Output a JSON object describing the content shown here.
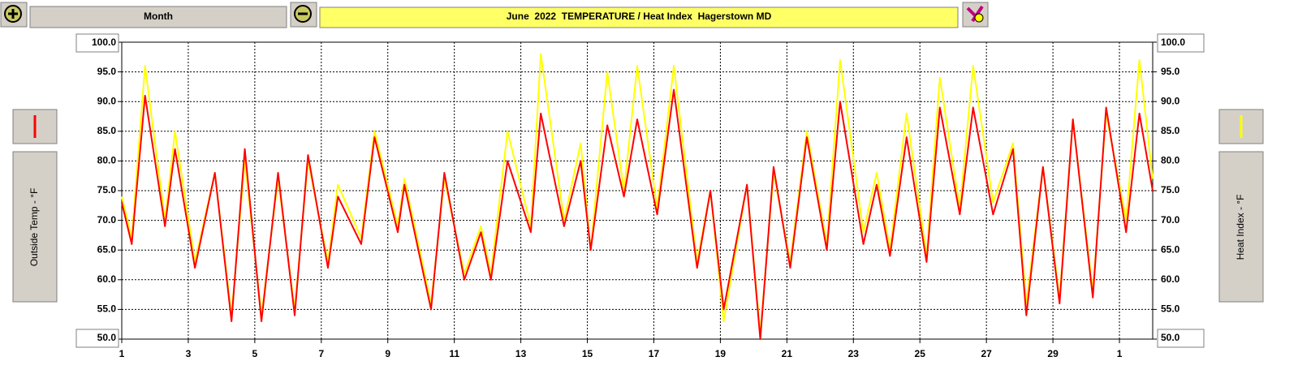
{
  "header": {
    "range_button": "Month"
  },
  "chart_data": {
    "type": "line",
    "title": "June  2022  TEMPERATURE / Heat Index  Hagerstown MD",
    "x": [
      1,
      1.3,
      1.7,
      2.3,
      2.6,
      3.2,
      3.8,
      4.3,
      4.7,
      5.2,
      5.7,
      6.2,
      6.6,
      7.2,
      7.5,
      8.2,
      8.6,
      9.3,
      9.5,
      10.3,
      10.7,
      11.3,
      11.8,
      12.1,
      12.6,
      13.3,
      13.6,
      14.3,
      14.8,
      15.1,
      15.6,
      16.1,
      16.5,
      17.1,
      17.6,
      18.3,
      18.7,
      19.1,
      19.8,
      20.2,
      20.6,
      21.1,
      21.6,
      22.2,
      22.6,
      23.3,
      23.7,
      24.1,
      24.6,
      25.2,
      25.6,
      26.2,
      26.6,
      27.2,
      27.8,
      28.2,
      28.7,
      29.2,
      29.6,
      30.2,
      30.6,
      31.2,
      31.6,
      32
    ],
    "series": [
      {
        "name": "Heat Index - °F",
        "color": "#ffff00",
        "axis": "y2",
        "values": [
          74,
          67,
          96,
          70,
          85,
          63,
          78,
          54,
          80,
          54,
          77,
          55,
          80,
          63,
          76,
          67,
          85,
          69,
          77,
          56,
          77,
          61,
          69,
          61,
          85,
          69,
          98,
          70,
          83,
          65,
          95,
          75,
          96,
          72,
          96,
          63,
          75,
          53,
          76,
          51,
          78,
          63,
          85,
          66,
          97,
          68,
          78,
          65,
          88,
          64,
          94,
          72,
          96,
          73,
          83,
          56,
          79,
          57,
          87,
          58,
          88,
          70,
          97,
          77
        ]
      },
      {
        "name": "Outside Temp - °F",
        "color": "#ff0000",
        "values": [
          73,
          66,
          91,
          69,
          82,
          62,
          78,
          53,
          82,
          53,
          78,
          54,
          81,
          62,
          74,
          66,
          84,
          68,
          76,
          55,
          78,
          60,
          68,
          60,
          80,
          68,
          88,
          69,
          80,
          65,
          86,
          74,
          87,
          71,
          92,
          62,
          75,
          55,
          76,
          50,
          79,
          62,
          84,
          65,
          90,
          66,
          76,
          64,
          84,
          63,
          89,
          71,
          89,
          71,
          82,
          54,
          79,
          56,
          87,
          57,
          89,
          68,
          88,
          75
        ]
      }
    ],
    "xlim": [
      1,
      32
    ],
    "xticks": [
      1,
      3,
      5,
      7,
      9,
      11,
      13,
      15,
      17,
      19,
      21,
      23,
      25,
      27,
      29,
      {
        "value": 31,
        "label": "1"
      }
    ],
    "ylim": [
      50,
      100
    ],
    "yticks": [
      {
        "value": 50,
        "label": "50.0"
      },
      {
        "value": 55,
        "label": "55.0"
      },
      {
        "value": 60,
        "label": "60.0"
      },
      {
        "value": 65,
        "label": "65.0"
      },
      {
        "value": 70,
        "label": "70.0"
      },
      {
        "value": 75,
        "label": "75.0"
      },
      {
        "value": 80,
        "label": "80.0"
      },
      {
        "value": 85,
        "label": "85.0"
      },
      {
        "value": 90,
        "label": "90.0"
      },
      {
        "value": 95,
        "label": "95.0"
      },
      {
        "value": 100,
        "label": "100.0"
      }
    ],
    "y2lim": [
      50,
      100
    ],
    "y2ticks": [
      {
        "value": 50,
        "label": "50.0"
      },
      {
        "value": 55,
        "label": "55.0"
      },
      {
        "value": 60,
        "label": "60.0"
      },
      {
        "value": 65,
        "label": "65.0"
      },
      {
        "value": 70,
        "label": "70.0"
      },
      {
        "value": 75,
        "label": "75.0"
      },
      {
        "value": 80,
        "label": "80.0"
      },
      {
        "value": 85,
        "label": "85.0"
      },
      {
        "value": 90,
        "label": "90.0"
      },
      {
        "value": 95,
        "label": "95.0"
      },
      {
        "value": 100,
        "label": "100.0"
      }
    ],
    "grid": true
  }
}
